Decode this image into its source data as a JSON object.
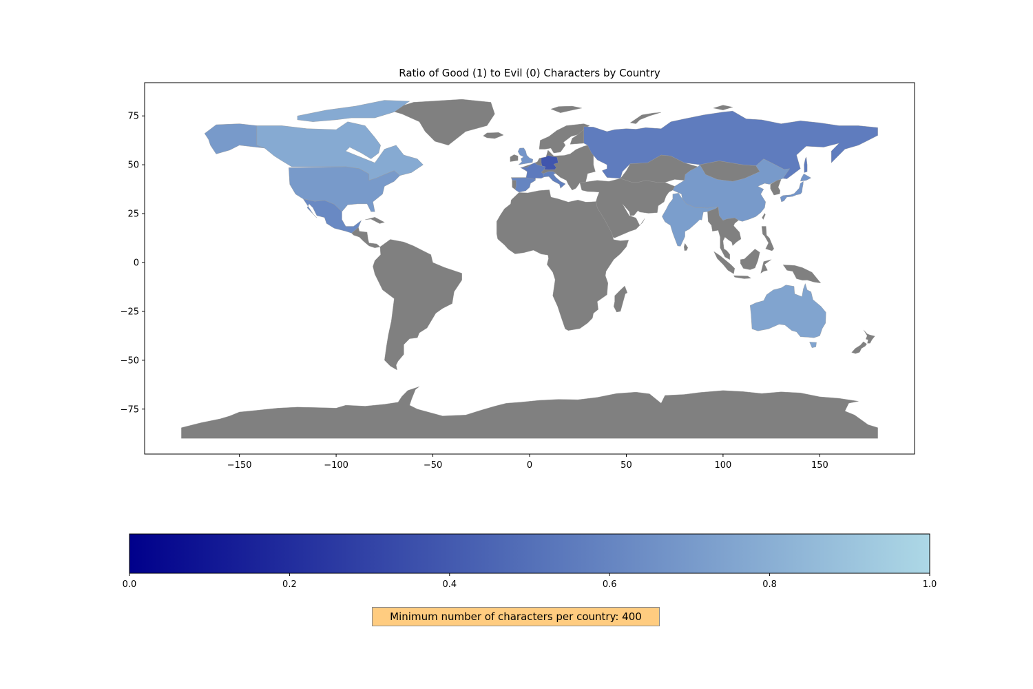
{
  "chart_data": {
    "type": "choropleth",
    "title": "Ratio of Good (1) to Evil (0) Characters by Country",
    "xlim": [
      -199,
      199
    ],
    "ylim": [
      -98,
      92
    ],
    "x_ticks": [
      -150,
      -100,
      -50,
      0,
      50,
      100,
      150
    ],
    "x_tick_labels": [
      "−150",
      "−100",
      "−50",
      "0",
      "50",
      "100",
      "150"
    ],
    "y_ticks": [
      75,
      50,
      25,
      0,
      -25,
      -50,
      -75
    ],
    "y_tick_labels": [
      "75",
      "50",
      "25",
      "0",
      "−25",
      "−50",
      "−75"
    ],
    "no_data_color": "#808080",
    "colormap": {
      "stops": [
        {
          "value": 0.0,
          "color": "#00008b"
        },
        {
          "value": 0.5,
          "color": "#5470b8"
        },
        {
          "value": 1.0,
          "color": "#add8e6"
        }
      ],
      "ticks": [
        0.0,
        0.2,
        0.4,
        0.6,
        0.8,
        1.0
      ],
      "tick_labels": [
        "0.0",
        "0.2",
        "0.4",
        "0.6",
        "0.8",
        "1.0"
      ],
      "orientation": "horizontal"
    },
    "countries": [
      {
        "name": "Canada",
        "ratio": 0.78
      },
      {
        "name": "United States",
        "ratio": 0.7
      },
      {
        "name": "Mexico",
        "ratio": 0.62
      },
      {
        "name": "Russia",
        "ratio": 0.56
      },
      {
        "name": "China",
        "ratio": 0.7
      },
      {
        "name": "India",
        "ratio": 0.72
      },
      {
        "name": "Australia",
        "ratio": 0.75
      },
      {
        "name": "Japan",
        "ratio": 0.68
      },
      {
        "name": "Germany",
        "ratio": 0.38
      },
      {
        "name": "France",
        "ratio": 0.55
      },
      {
        "name": "Italy",
        "ratio": 0.58
      },
      {
        "name": "United Kingdom",
        "ratio": 0.68
      },
      {
        "name": "Spain",
        "ratio": 0.6
      }
    ]
  },
  "note": {
    "text": "Minimum number of characters per country: 400",
    "background": "#ffcc80"
  }
}
